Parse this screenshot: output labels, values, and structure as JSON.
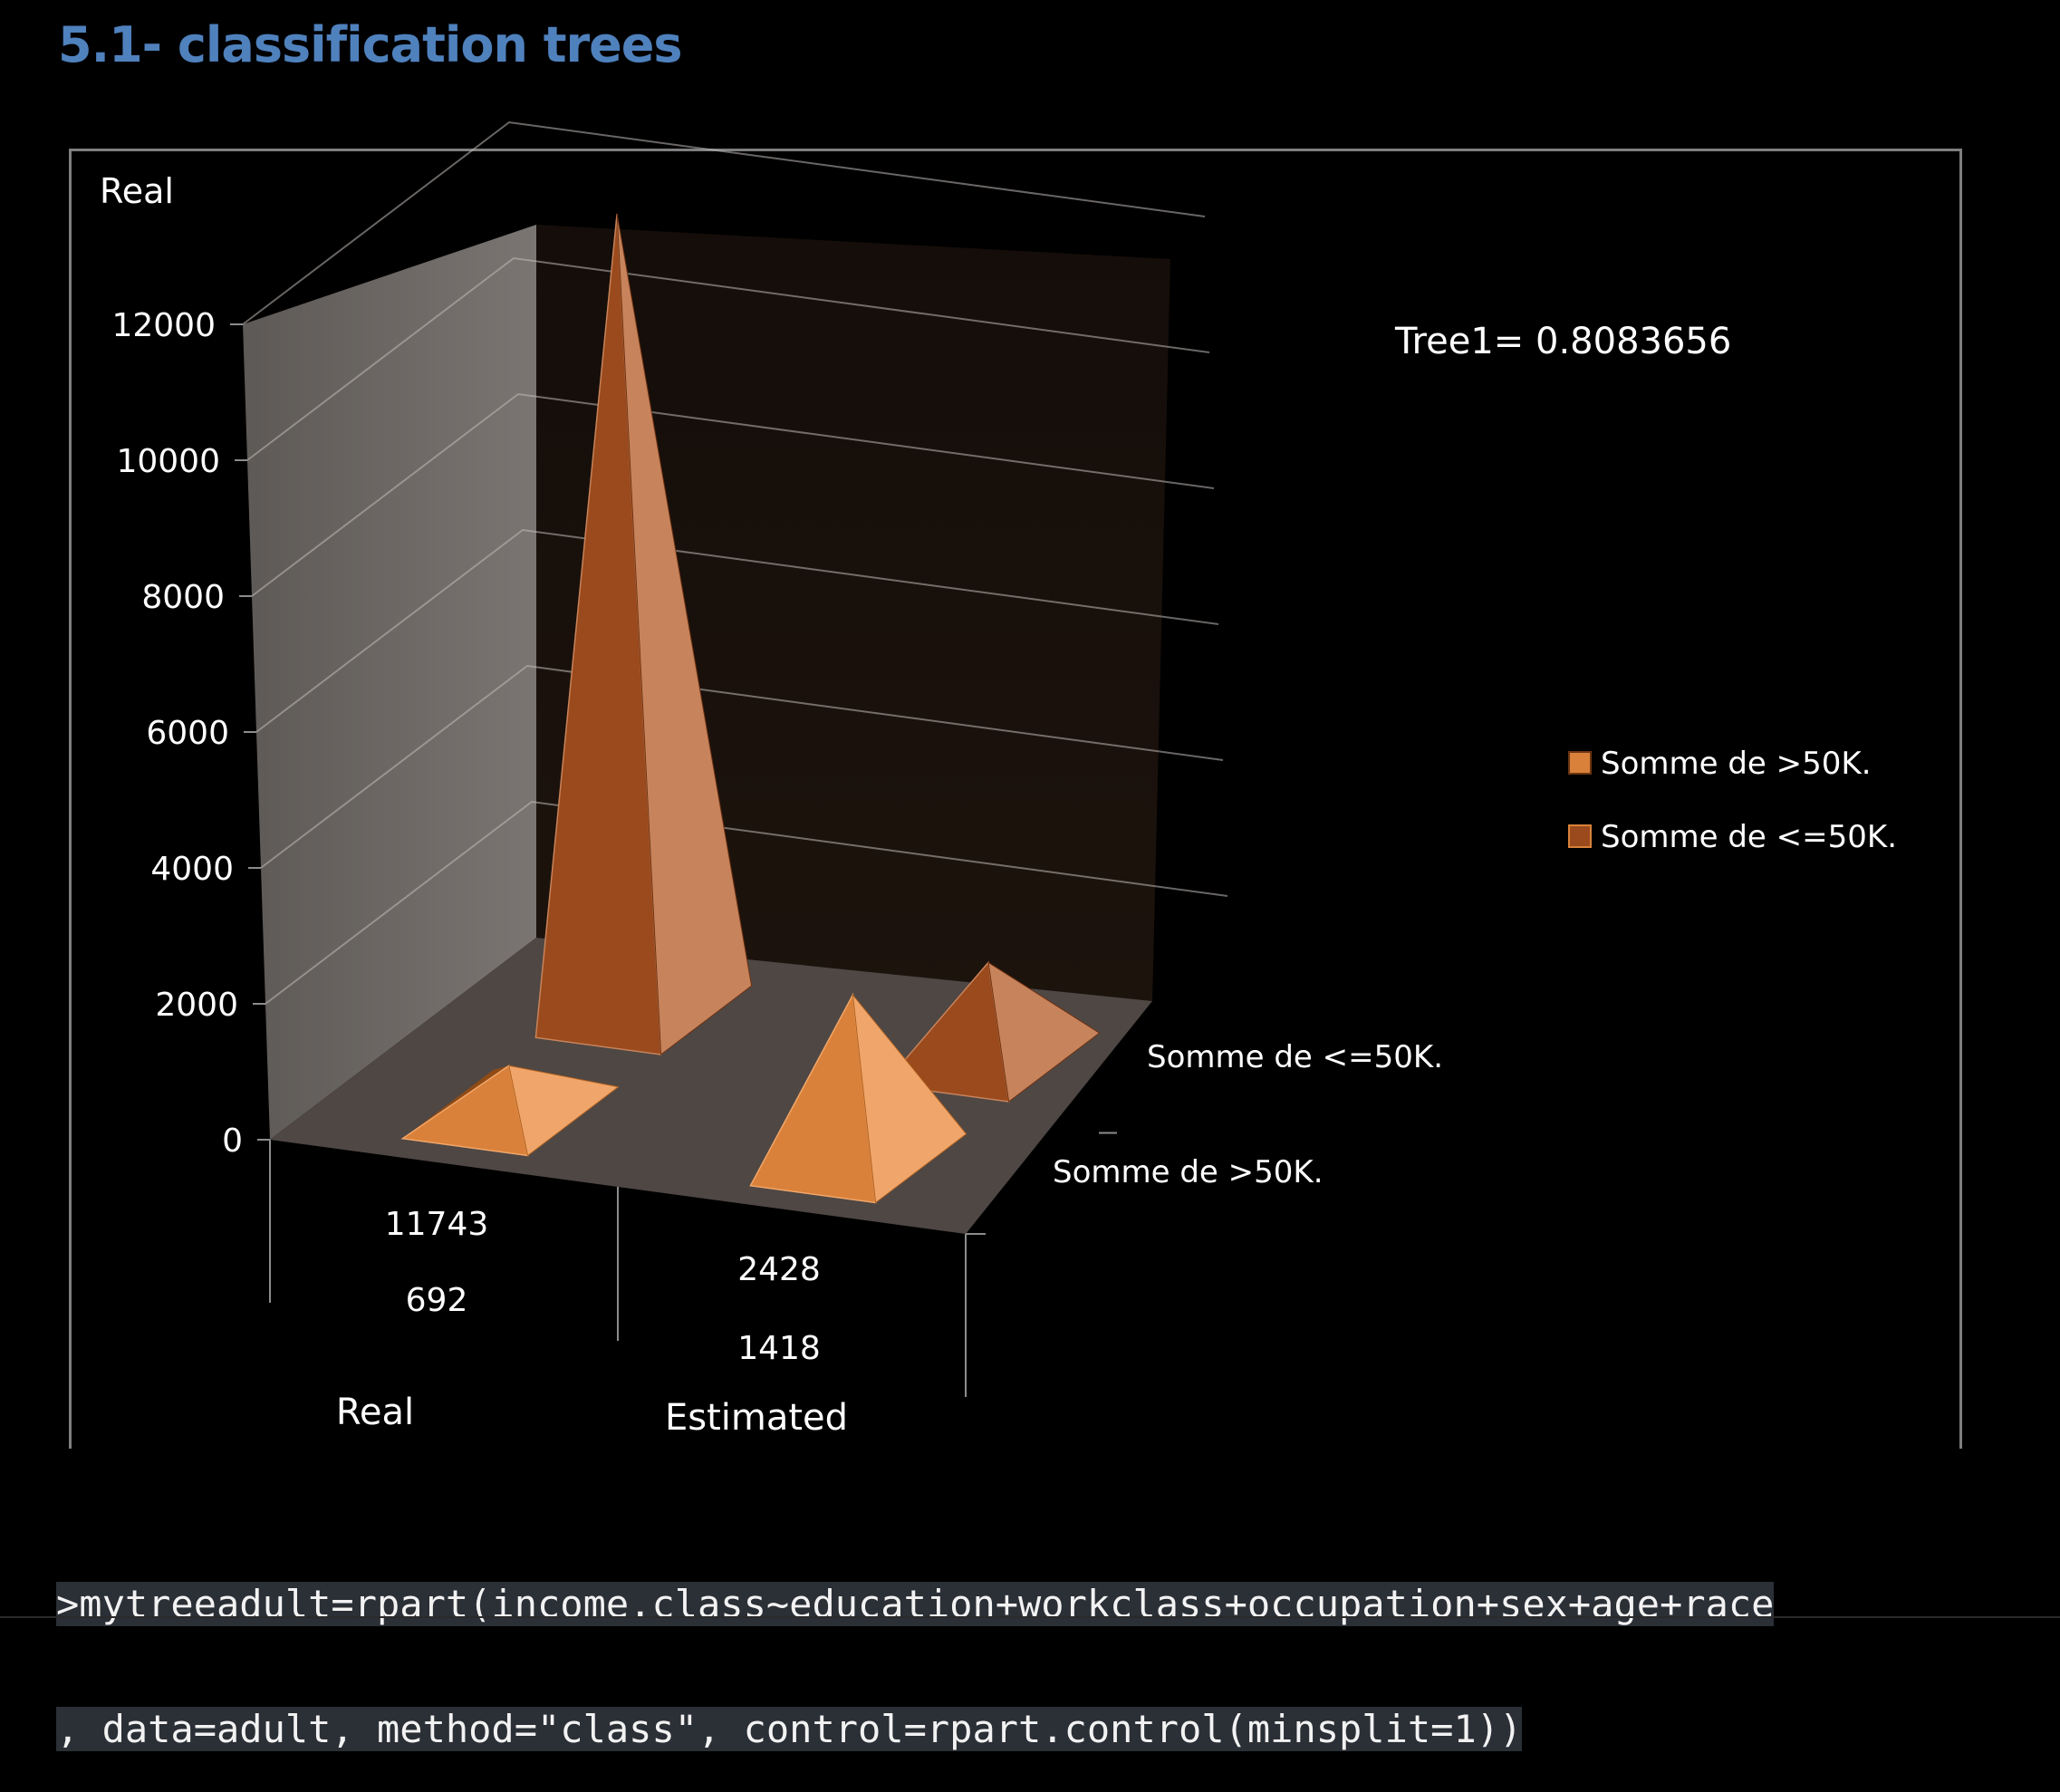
{
  "heading": "5.1- classification trees",
  "chart_data": {
    "type": "3d-pyramid-column",
    "axis_title": "Real",
    "annotation": "Tree1= 0.8083656",
    "yticks": [
      "0",
      "2000",
      "4000",
      "6000",
      "8000",
      "10000",
      "12000"
    ],
    "ylim": [
      0,
      12000
    ],
    "categories": [
      "Real",
      "Estimated"
    ],
    "series": [
      {
        "name": "Somme de >50K.",
        "values": [
          692,
          2428
        ]
      },
      {
        "name": "Somme de <=50K.",
        "values": [
          11743,
          1418
        ]
      }
    ],
    "table_rows": [
      [
        "11743",
        "2428"
      ],
      [
        "692",
        "1418"
      ]
    ],
    "legend": [
      "Somme de >50K.",
      "Somme de <=50K."
    ],
    "legend_position": "right",
    "grid": true,
    "colors": {
      "front_series": "#d9813a",
      "back_series": "#9a4a1c",
      "back_wall": "#130c08",
      "side_wall": "#6b6662",
      "floor": "#4f4845"
    }
  },
  "code": {
    "line1": ">mytreeadult=rpart(income.class~education+workclass+occupation+sex+age+race",
    "line2": ", data=adult, method=\"class\", control=rpart.control(minsplit=1))"
  }
}
